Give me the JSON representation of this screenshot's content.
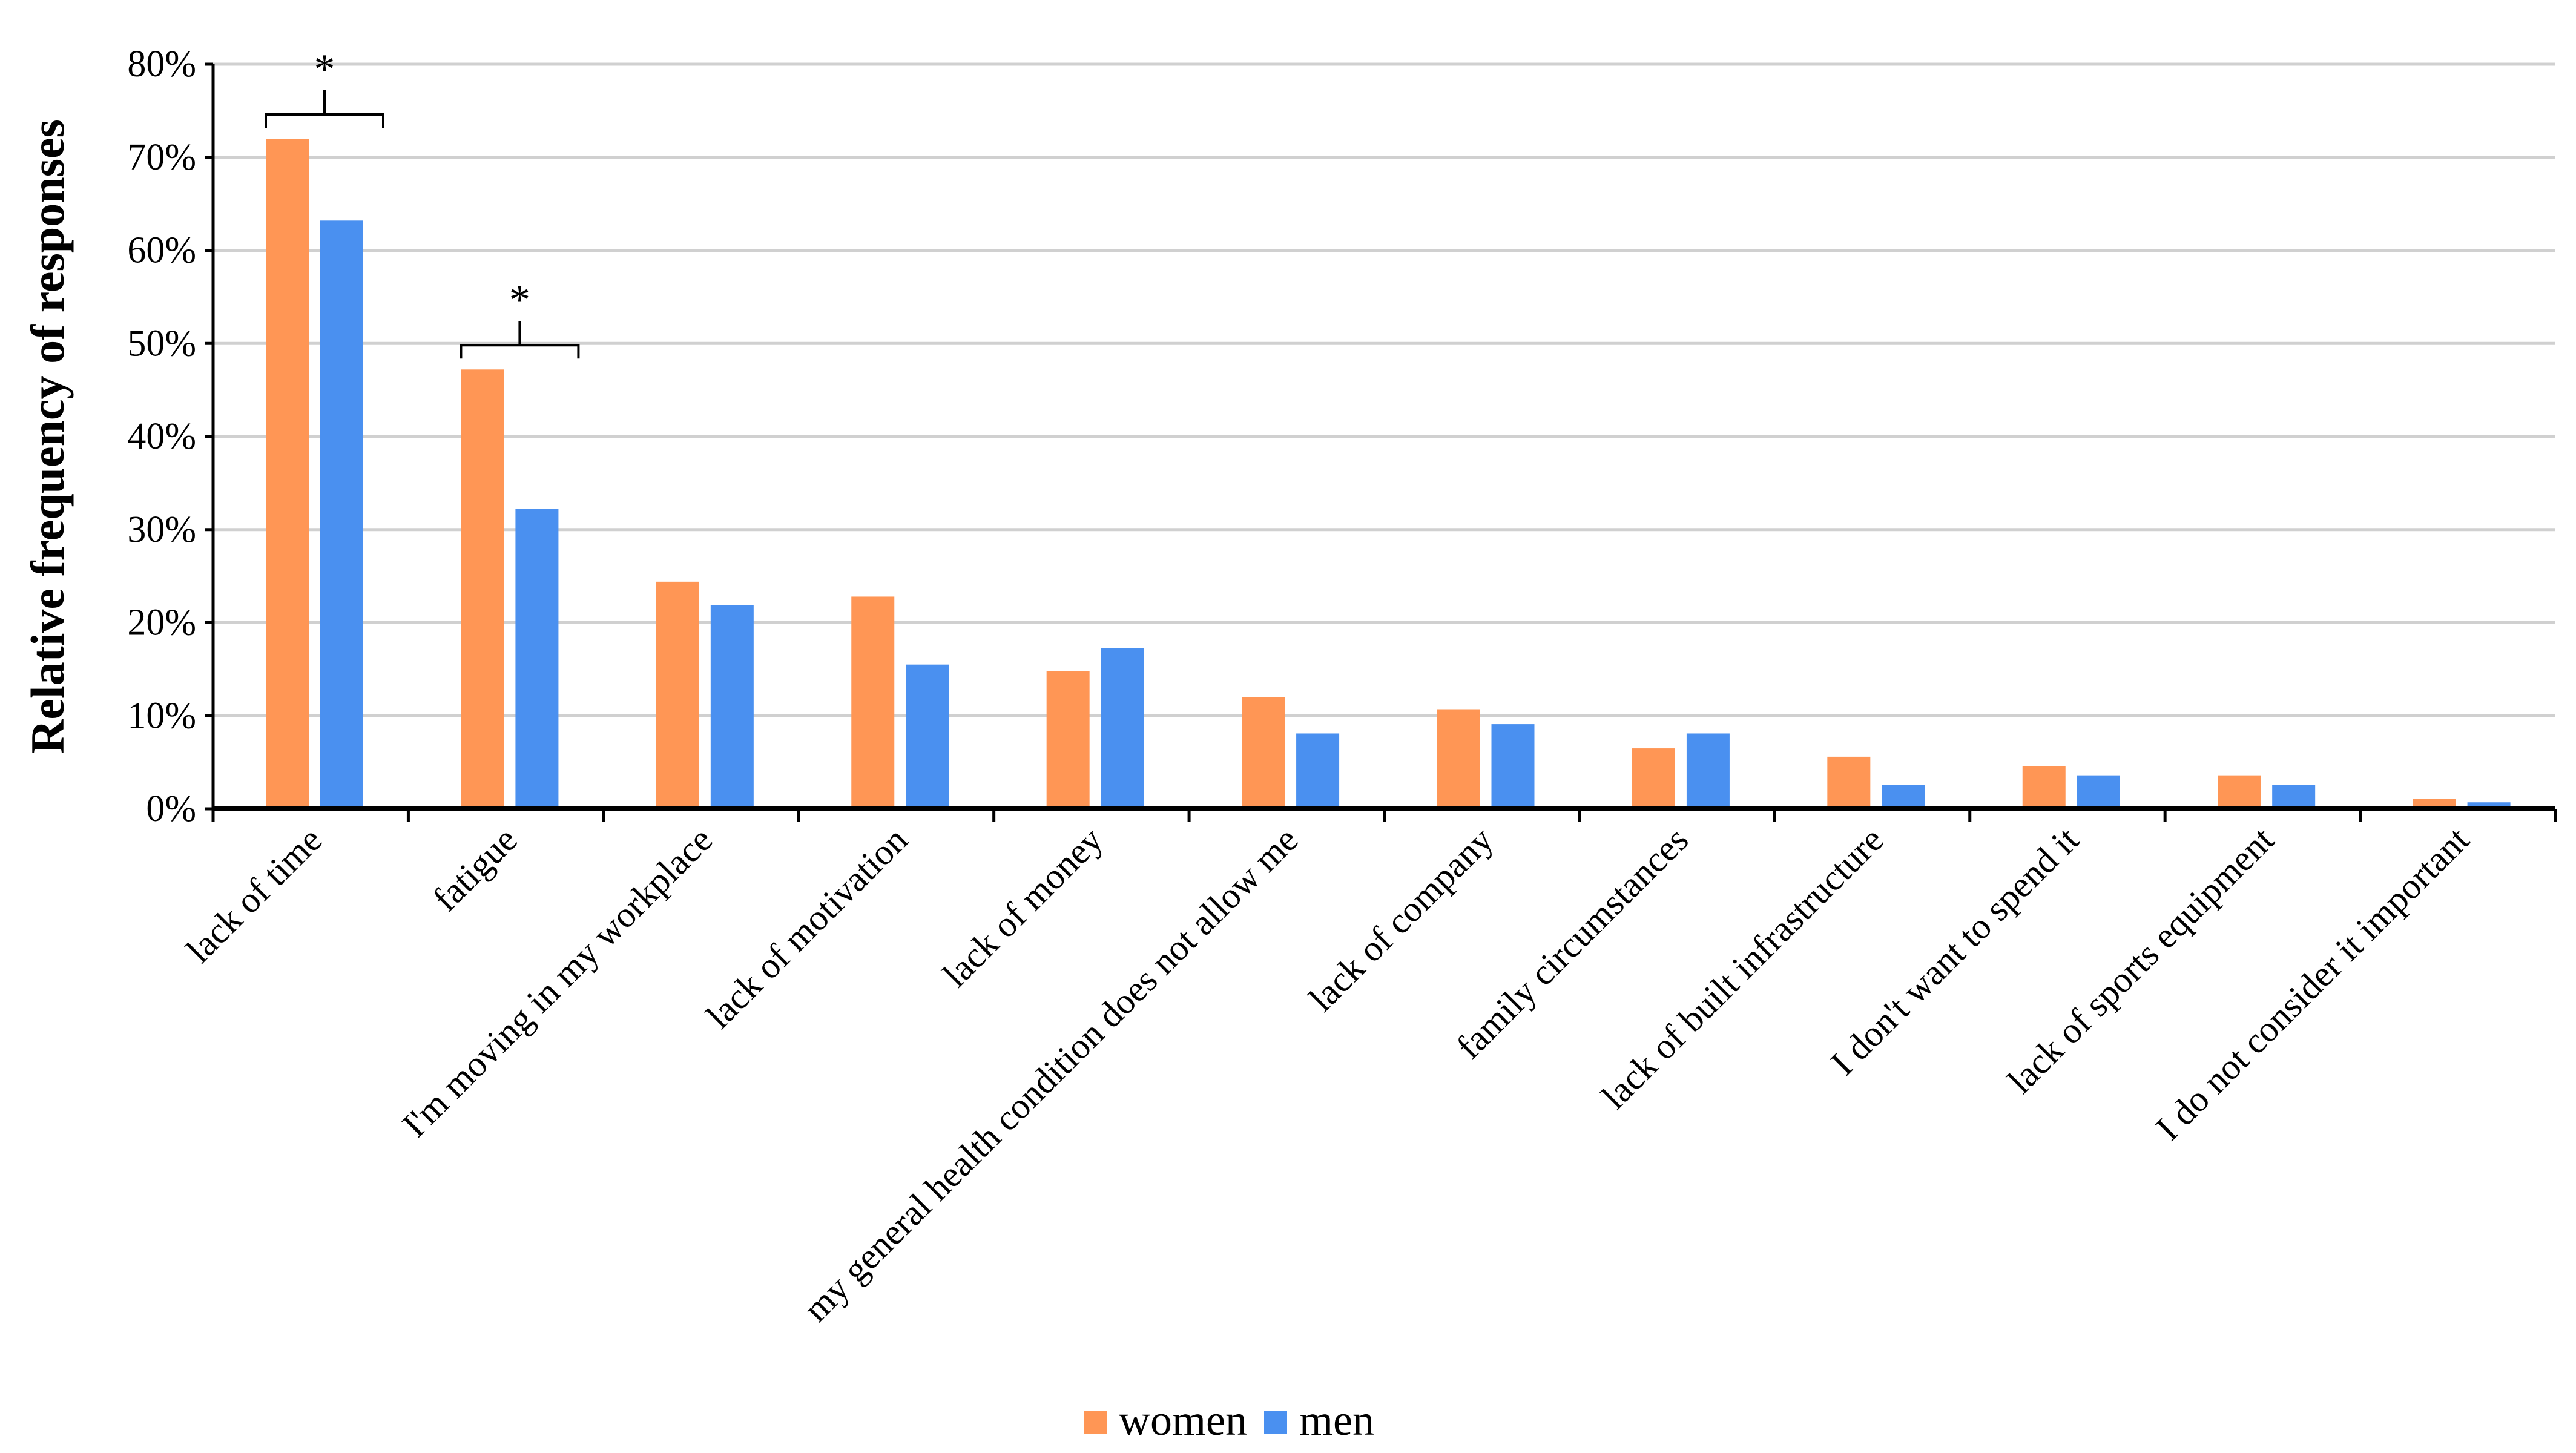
{
  "chart_data": {
    "type": "bar",
    "title": "",
    "xlabel": "",
    "ylabel": "Relative frequency of responses",
    "ylim": [
      0,
      80
    ],
    "yticks": [
      "0%",
      "10%",
      "20%",
      "30%",
      "40%",
      "50%",
      "60%",
      "70%",
      "80%"
    ],
    "grid": true,
    "legend_position": "bottom",
    "categories": [
      "lack of time",
      "fatigue",
      "I'm moving in my workplace",
      "lack of motivation",
      "lack of money",
      "my general health condition does not allow me",
      "lack of company",
      "family circumstances",
      "lack of built infrastructure",
      "I don't want to spend it",
      "lack of sports equipment",
      "I do not consider it important"
    ],
    "series": [
      {
        "name": "women",
        "color": "#FF9655",
        "values": [
          72.0,
          47.2,
          24.4,
          22.8,
          14.8,
          12.0,
          10.7,
          6.5,
          5.6,
          4.6,
          3.6,
          1.1
        ]
      },
      {
        "name": "men",
        "color": "#4A90F0",
        "values": [
          63.2,
          32.2,
          21.9,
          15.5,
          17.3,
          8.1,
          9.1,
          8.1,
          2.6,
          3.6,
          2.6,
          0.7
        ]
      }
    ],
    "annotations": [
      {
        "category": "lack of time",
        "label": "*"
      },
      {
        "category": "fatigue",
        "label": "*"
      }
    ]
  }
}
